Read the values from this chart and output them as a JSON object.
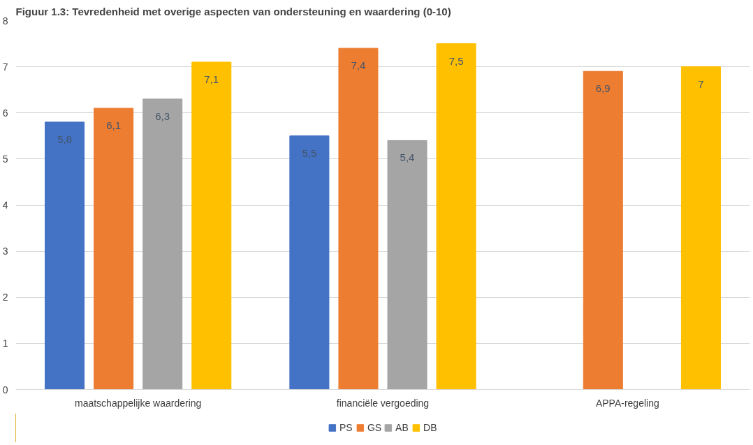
{
  "chart_data": {
    "type": "bar",
    "title": "Figuur 1.3: Tevredenheid met overige aspecten van ondersteuning en waardering (0-10)",
    "categories": [
      "maatschappelijke waardering",
      "financiële vergoeding",
      "APPA-regeling"
    ],
    "series": [
      {
        "name": "PS",
        "color": "#4472c4",
        "values": [
          5.8,
          5.5,
          null
        ],
        "value_labels": [
          "5,8",
          "5,5",
          null
        ]
      },
      {
        "name": "GS",
        "color": "#ed7d31",
        "values": [
          6.1,
          7.4,
          6.9
        ],
        "value_labels": [
          "6,1",
          "7,4",
          "6,9"
        ]
      },
      {
        "name": "AB",
        "color": "#a5a5a5",
        "values": [
          6.3,
          5.4,
          null
        ],
        "value_labels": [
          "6,3",
          "5,4",
          null
        ]
      },
      {
        "name": "DB",
        "color": "#ffc000",
        "values": [
          7.1,
          7.5,
          7
        ],
        "value_labels": [
          "7,1",
          "7,5",
          "7"
        ]
      }
    ],
    "ylim": [
      0,
      8
    ],
    "yticks": [
      0,
      1,
      2,
      3,
      4,
      5,
      6,
      7,
      8
    ],
    "grid": "y",
    "legend": "bottom"
  }
}
